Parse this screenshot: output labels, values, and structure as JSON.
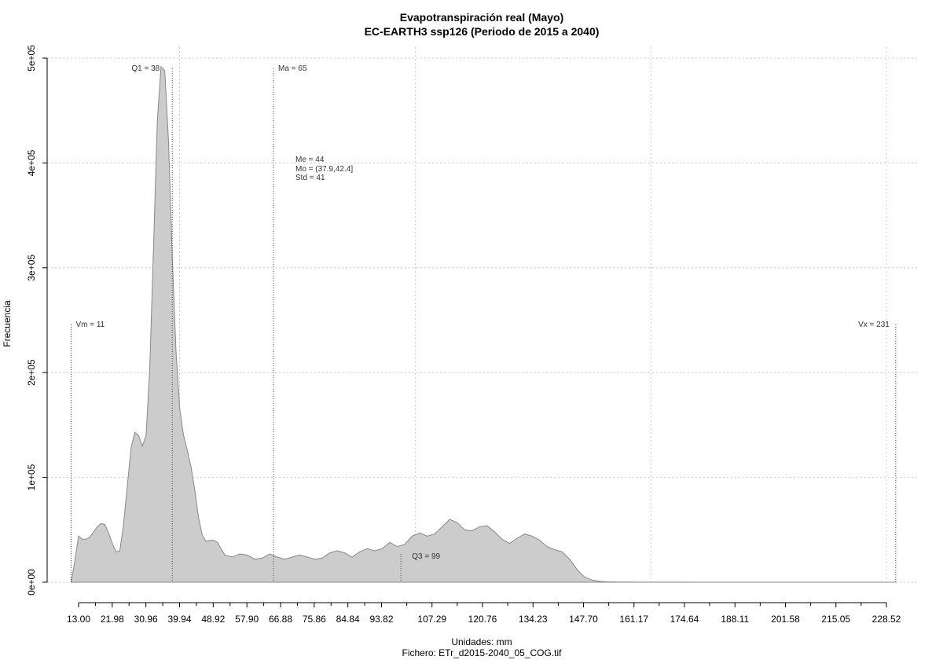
{
  "chart_data": {
    "type": "area",
    "title": "Evapotranspiración real (Mayo)",
    "subtitle": "EC-EARTH3 ssp126 (Periodo de 2015 a 2040)",
    "xlabel": "Unidades: mm",
    "ylabel": "Frecuencia",
    "caption": "Fichero: ETr_d2015-2040_05_COG.tif",
    "xlim": [
      13.0,
      228.52
    ],
    "ylim": [
      0,
      500000
    ],
    "x_tick_labels": [
      "13.00",
      "21.98",
      "30.96",
      "39.94",
      "48.92",
      "57.90",
      "66.88",
      "75.86",
      "84.84",
      "93.82",
      "107.29",
      "120.76",
      "134.23",
      "147.70",
      "161.17",
      "174.64",
      "188.11",
      "201.58",
      "215.05",
      "228.52"
    ],
    "y_ticks": [
      0,
      100000,
      200000,
      300000,
      400000,
      500000
    ],
    "y_tick_labels": [
      "0e+00",
      "1e+05",
      "2e+05",
      "3e+05",
      "4e+05",
      "5e+05"
    ],
    "x_grid": [
      39.94,
      102.8,
      165.66,
      228.52
    ],
    "grid": true,
    "fill_color": "#cccccc",
    "line_color": "#888888",
    "series": [
      {
        "x": [
          11,
          12,
          13,
          14,
          15,
          16,
          17,
          18,
          19,
          20,
          21,
          22,
          23,
          24,
          25,
          26,
          27,
          28,
          29,
          30,
          31,
          32,
          33,
          34,
          35,
          36,
          37,
          38,
          39,
          40,
          41,
          42,
          43,
          44,
          45,
          46,
          47,
          48,
          49,
          50,
          52,
          54,
          56,
          58,
          60,
          62,
          64,
          66,
          68,
          70,
          72,
          74,
          76,
          78,
          80,
          82,
          84,
          86,
          88,
          90,
          92,
          94,
          96,
          98,
          100,
          102,
          104,
          106,
          108,
          110,
          112,
          114,
          116,
          118,
          120,
          122,
          124,
          126,
          128,
          130,
          132,
          134,
          136,
          138,
          140,
          142,
          144,
          146,
          148,
          150,
          152,
          154,
          156,
          158,
          160,
          162,
          164,
          166,
          170,
          175,
          180,
          190,
          200,
          210,
          220,
          230,
          231
        ],
        "y": [
          0,
          20000,
          44000,
          41000,
          41000,
          43000,
          48000,
          53000,
          56000,
          55000,
          47000,
          37000,
          29000,
          30000,
          55000,
          92000,
          128000,
          143000,
          140000,
          130000,
          140000,
          205000,
          320000,
          440000,
          492000,
          488000,
          420000,
          310000,
          220000,
          165000,
          140000,
          126000,
          110000,
          88000,
          62000,
          45000,
          39000,
          40000,
          40000,
          38000,
          26000,
          24000,
          27000,
          26000,
          22000,
          23000,
          27000,
          24000,
          22000,
          24000,
          26000,
          24000,
          22000,
          23000,
          28000,
          30000,
          28000,
          24000,
          29000,
          32000,
          30000,
          32000,
          38000,
          34000,
          36000,
          44000,
          47000,
          44000,
          46000,
          53000,
          60000,
          57000,
          50000,
          49000,
          53000,
          54000,
          48000,
          41000,
          37000,
          42000,
          46000,
          44000,
          40000,
          34000,
          31000,
          29000,
          22000,
          12000,
          5000,
          2000,
          800,
          400,
          300,
          200,
          150,
          100,
          80,
          60,
          50,
          40,
          30,
          20,
          10,
          5,
          2,
          0,
          0
        ]
      }
    ],
    "markers": [
      {
        "label": "Vm = 11",
        "value": 11
      },
      {
        "label": "Q1 = 38",
        "value": 38
      },
      {
        "label": "Ma = 65",
        "value": 65
      },
      {
        "label": "Q3 = 99",
        "value": 99
      },
      {
        "label": "Vx = 231",
        "value": 231
      }
    ],
    "stats": [
      "Me = 44",
      "Mo = (37.9,42.4]",
      "Std = 41"
    ]
  }
}
